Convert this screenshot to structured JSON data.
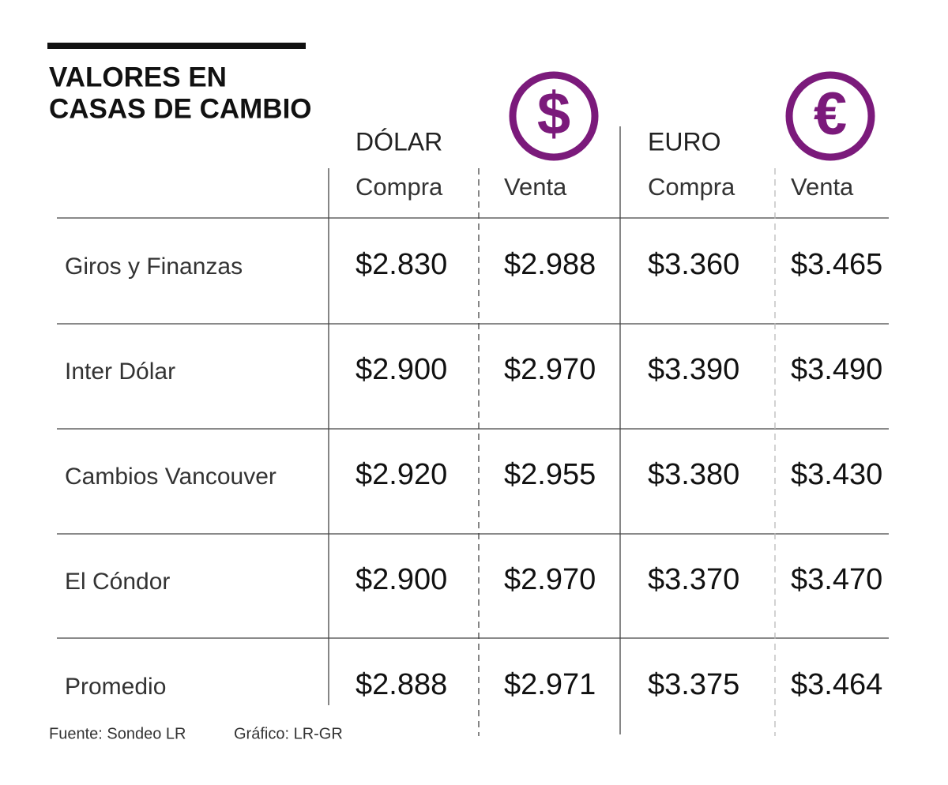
{
  "header": {
    "title_lines": [
      "VALORES EN",
      "CASAS DE CAMBIO"
    ]
  },
  "table": {
    "groups": [
      {
        "label": "DÓLAR",
        "icon": "$"
      },
      {
        "label": "EURO",
        "icon": "€"
      }
    ],
    "columns": [
      "Compra",
      "Venta",
      "Compra",
      "Venta"
    ],
    "rows": [
      [
        "Giros y Finanzas",
        "$2.830",
        "$2.988",
        "$3.360",
        "$3.465"
      ],
      [
        "Inter Dólar",
        "$2.900",
        "$2.970",
        "$3.390",
        "$3.490"
      ],
      [
        "Cambios Vancouver",
        "$2.920",
        "$2.955",
        "$3.380",
        "$3.430"
      ],
      [
        "El Cóndor",
        "$2.900",
        "$2.970",
        "$3.370",
        "$3.470"
      ],
      [
        "Promedio",
        "$2.888",
        "$2.971",
        "$3.375",
        "$3.464"
      ]
    ]
  },
  "footer": {
    "source": "Fuente: Sondeo LR",
    "credit": "Gráfico: LR-GR"
  }
}
